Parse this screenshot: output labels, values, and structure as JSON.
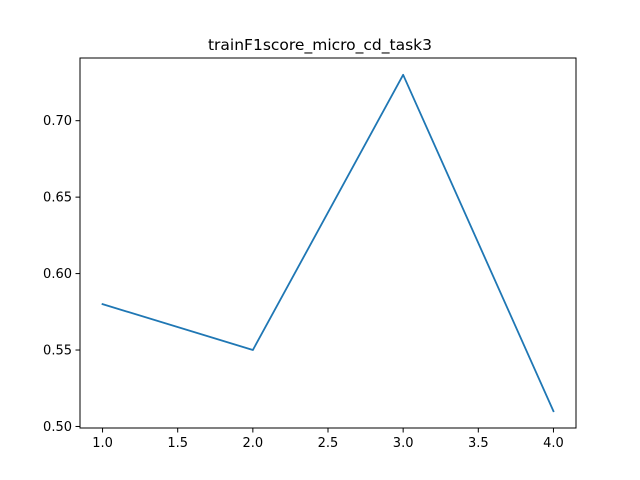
{
  "chart_data": {
    "type": "line",
    "title": "trainF1score_micro_cd_task3",
    "xlabel": "",
    "ylabel": "",
    "x": [
      1.0,
      2.0,
      3.0,
      4.0
    ],
    "series": [
      {
        "values": [
          0.58,
          0.55,
          0.73,
          0.51
        ],
        "color": "#1f77b4"
      }
    ],
    "xlim": [
      0.85,
      4.15
    ],
    "ylim": [
      0.499,
      0.741
    ],
    "xticks": [
      1.0,
      1.5,
      2.0,
      2.5,
      3.0,
      3.5,
      4.0
    ],
    "xtick_labels": [
      "1.0",
      "1.5",
      "2.0",
      "2.5",
      "3.0",
      "3.5",
      "4.0"
    ],
    "yticks": [
      0.5,
      0.55,
      0.6,
      0.65,
      0.7
    ],
    "ytick_labels": [
      "0.50",
      "0.55",
      "0.60",
      "0.65",
      "0.70"
    ],
    "grid": false,
    "legend": "none"
  }
}
